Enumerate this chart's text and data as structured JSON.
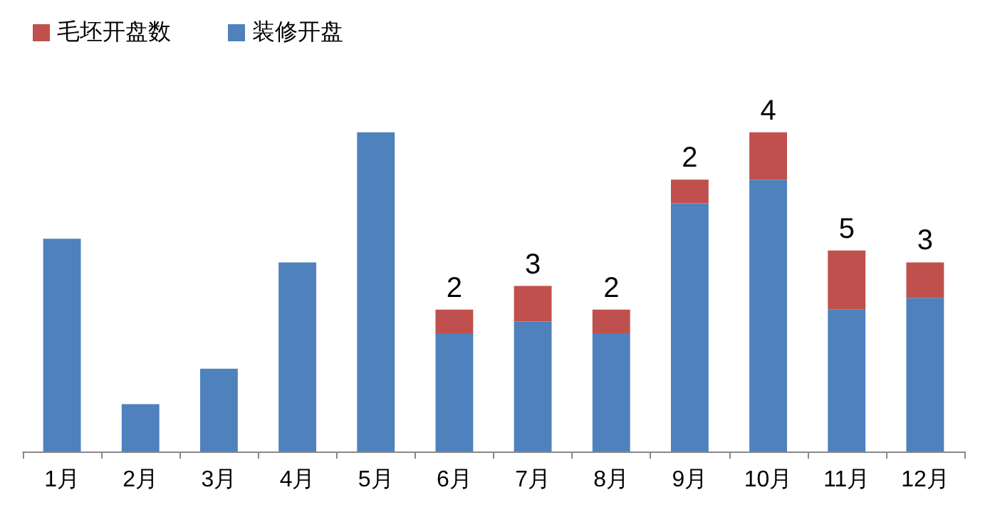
{
  "chart_data": {
    "type": "bar",
    "stacked": true,
    "categories": [
      "1月",
      "2月",
      "3月",
      "4月",
      "5月",
      "6月",
      "7月",
      "8月",
      "9月",
      "10月",
      "11月",
      "12月"
    ],
    "series": [
      {
        "name": "装修开盘",
        "color": "#4f81bd",
        "values": [
          18,
          4,
          7,
          16,
          27,
          10,
          11,
          10,
          21,
          23,
          12,
          13
        ]
      },
      {
        "name": "毛坯开盘数",
        "color": "#c0504d",
        "values": [
          0,
          0,
          0,
          0,
          0,
          2,
          3,
          2,
          2,
          4,
          5,
          3
        ],
        "value_labels": [
          null,
          null,
          null,
          null,
          null,
          "2",
          "3",
          "2",
          "2",
          "4",
          "5",
          "3"
        ]
      }
    ],
    "legend": "top left"
  }
}
